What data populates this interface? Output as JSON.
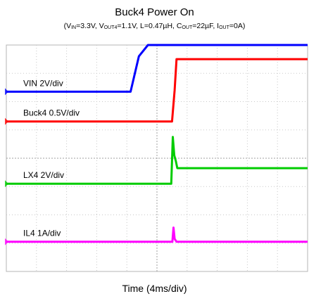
{
  "chart_data": {
    "type": "line",
    "title": "Buck4 Power On",
    "subtitle": {
      "open": "(V",
      "vin_sub": "IN",
      "vin_val": "=3.3V, V",
      "vout_sub": "OUT4",
      "vout_val": "=1.1V, L=0.47µH, C",
      "cout_sub": "OUT",
      "cout_val": "=22µF, I",
      "iout_sub": "OUT",
      "iout_val": "=0A)"
    },
    "xlabel": "Time (4ms/div)",
    "x_divisions": 10,
    "y_divisions": 8,
    "xlim": [
      0,
      40
    ],
    "grid": true,
    "series": [
      {
        "name": "VIN",
        "scale_label": "VIN   2V/div",
        "color": "#0000ff",
        "unit": "V",
        "volts_per_div": 2,
        "ground_div": 6.35,
        "x": [
          0,
          16.5,
          17.6,
          18.8,
          40
        ],
        "values": [
          0,
          0,
          2.5,
          3.3,
          3.3
        ]
      },
      {
        "name": "Buck4",
        "scale_label": "Buck4   0.5V/div",
        "color": "#ff0000",
        "unit": "V",
        "volts_per_div": 0.5,
        "ground_div": 5.3,
        "x": [
          0,
          22.0,
          22.35,
          22.6,
          40
        ],
        "values": [
          0,
          0,
          0.55,
          1.1,
          1.1
        ]
      },
      {
        "name": "LX4",
        "scale_label": "LX4   2V/div",
        "color": "#00cc00",
        "unit": "V",
        "volts_per_div": 2,
        "ground_div": 3.1,
        "x": [
          0,
          21.9,
          22.1,
          22.3,
          22.5,
          22.7,
          40
        ],
        "values": [
          0,
          0,
          3.3,
          2.0,
          1.6,
          1.1,
          1.1
        ]
      },
      {
        "name": "IL4",
        "scale_label": "IL4      1A/div",
        "color": "#ff00ff",
        "unit": "A",
        "volts_per_div": 1,
        "ground_div": 1.05,
        "x": [
          0,
          22.05,
          22.2,
          22.35,
          22.6,
          40
        ],
        "values": [
          0,
          0,
          0.5,
          0.1,
          0,
          0
        ]
      }
    ]
  }
}
